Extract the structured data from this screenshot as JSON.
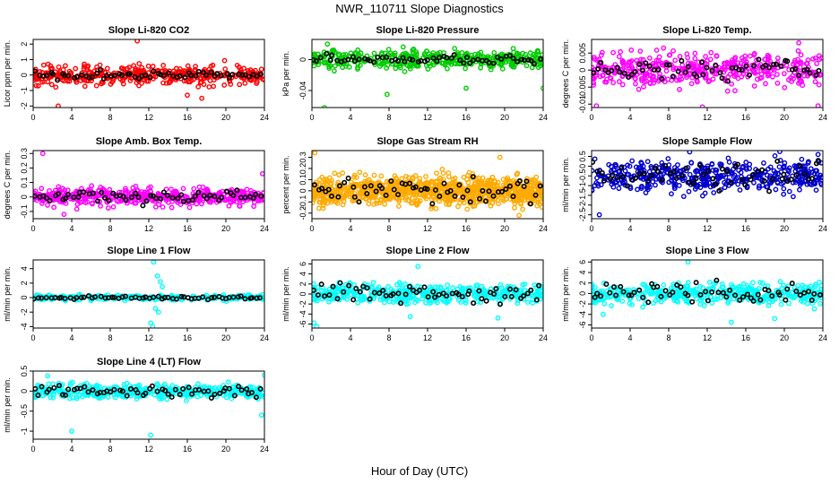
{
  "figure": {
    "title": "NWR_110711  Slope Diagnostics",
    "xlabel": "Hour of Day (UTC)"
  },
  "chart_data": [
    {
      "type": "scatter",
      "title": "Slope Li-820 CO2",
      "ylabel": "Licor ppm per min.",
      "color": "#ff0000",
      "xlim": [
        0,
        24
      ],
      "xticks": [
        0,
        4,
        8,
        12,
        16,
        20,
        24
      ],
      "ylim": [
        -2.1,
        2.3
      ],
      "yticks": [
        -2,
        -1,
        0,
        1,
        2
      ],
      "spread": 0.45,
      "black_spread": 0.2,
      "n_color": 400,
      "n_black": 60,
      "outliers": [
        {
          "x": 10.8,
          "y": 2.2
        },
        {
          "x": 2.6,
          "y": -2.0
        },
        {
          "x": 17.5,
          "y": -1.5
        },
        {
          "x": 16.0,
          "y": -1.3
        }
      ]
    },
    {
      "type": "scatter",
      "title": "Slope Li-820 Pressure",
      "ylabel": "kPa per min.",
      "color": "#00cc00",
      "xlim": [
        0,
        24
      ],
      "xticks": [
        0,
        4,
        8,
        12,
        16,
        20,
        24
      ],
      "ylim": [
        -0.062,
        0.026
      ],
      "yticks": [
        -0.04,
        0.0
      ],
      "spread": 0.008,
      "black_spread": 0.004,
      "n_color": 400,
      "n_black": 60,
      "outliers": [
        {
          "x": 1.3,
          "y": -0.062
        },
        {
          "x": 7.8,
          "y": -0.045
        },
        {
          "x": 16.0,
          "y": -0.037
        },
        {
          "x": 24.0,
          "y": -0.037
        },
        {
          "x": 1.6,
          "y": 0.02
        }
      ]
    },
    {
      "type": "scatter",
      "title": "Slope Li-820 Temp.",
      "ylabel": "degrees C per min.",
      "color": "#ff00ff",
      "xlim": [
        0,
        24
      ],
      "xticks": [
        0,
        4,
        8,
        12,
        16,
        20,
        24
      ],
      "ylim": [
        -0.011,
        0.009
      ],
      "yticks": [
        -0.01,
        -0.005,
        0.0,
        0.005
      ],
      "spread": 0.0035,
      "black_spread": 0.002,
      "n_color": 420,
      "n_black": 60,
      "outliers": [
        {
          "x": 0.5,
          "y": -0.0105
        },
        {
          "x": 11.5,
          "y": -0.0108
        },
        {
          "x": 23.5,
          "y": -0.0105
        },
        {
          "x": 21.5,
          "y": 0.008
        }
      ]
    },
    {
      "type": "scatter",
      "title": "Slope Amb. Box Temp.",
      "ylabel": "degrees C per min.",
      "color": "#ff00ff",
      "xlim": [
        0,
        24
      ],
      "xticks": [
        0,
        4,
        8,
        12,
        16,
        20,
        24
      ],
      "ylim": [
        -0.15,
        0.32
      ],
      "yticks": [
        -0.1,
        0.0,
        0.1,
        0.2,
        0.3
      ],
      "spread": 0.04,
      "black_spread": 0.03,
      "n_color": 500,
      "n_black": 60,
      "outliers": [
        {
          "x": 1.0,
          "y": 0.3
        },
        {
          "x": 3.2,
          "y": -0.12
        },
        {
          "x": 23.8,
          "y": 0.16
        }
      ]
    },
    {
      "type": "scatter",
      "title": "Slope Gas Stream RH",
      "ylabel": "percent per min.",
      "color": "#ffaa00",
      "xlim": [
        0,
        24
      ],
      "xticks": [
        0,
        4,
        8,
        12,
        16,
        20,
        24
      ],
      "ylim": [
        -0.25,
        0.36
      ],
      "yticks": [
        -0.2,
        -0.1,
        0.0,
        0.1,
        0.2,
        0.3
      ],
      "spread": 0.09,
      "black_spread": 0.08,
      "n_color": 900,
      "n_black": 60,
      "outliers": [
        {
          "x": 0.3,
          "y": 0.34
        },
        {
          "x": 19.5,
          "y": 0.3
        },
        {
          "x": 21.5,
          "y": -0.22
        }
      ]
    },
    {
      "type": "scatter",
      "title": "Slope Sample Flow",
      "ylabel": "ml/min per min.",
      "color": "#0000cc",
      "xlim": [
        0,
        24
      ],
      "xticks": [
        0,
        4,
        8,
        12,
        16,
        20,
        24
      ],
      "ylim": [
        -2.7,
        0.8
      ],
      "yticks": [
        -2.5,
        -2.0,
        -1.5,
        -1.0,
        -0.5,
        0.0,
        0.5
      ],
      "spread": 0.6,
      "black_spread": 0.5,
      "n_color": 460,
      "n_black": 60,
      "center": -0.5,
      "outliers": [
        {
          "x": 23.5,
          "y": 0.6
        },
        {
          "x": 0.8,
          "y": -2.5
        }
      ]
    },
    {
      "type": "scatter",
      "title": "Slope Line 1 Flow",
      "ylabel": "ml/min per min.",
      "color": "#00ffff",
      "xlim": [
        0,
        24
      ],
      "xticks": [
        0,
        4,
        8,
        12,
        16,
        20,
        24
      ],
      "ylim": [
        -4.2,
        5.2
      ],
      "yticks": [
        -4,
        -2,
        0,
        2,
        4
      ],
      "spread": 0.25,
      "black_spread": 0.15,
      "n_color": 260,
      "n_black": 60,
      "outliers": [
        {
          "x": 12.5,
          "y": 4.9
        },
        {
          "x": 12.9,
          "y": 3.0
        },
        {
          "x": 12.2,
          "y": -3.5
        },
        {
          "x": 13.0,
          "y": -2.0
        },
        {
          "x": 12.7,
          "y": -1.5
        },
        {
          "x": 13.2,
          "y": 2.2
        },
        {
          "x": 12.4,
          "y": -4.0
        },
        {
          "x": 13.4,
          "y": 1.5
        }
      ]
    },
    {
      "type": "scatter",
      "title": "Slope Line 2 Flow",
      "ylabel": "ml/min per min.",
      "color": "#00ffff",
      "xlim": [
        0,
        24
      ],
      "xticks": [
        0,
        4,
        8,
        12,
        16,
        20,
        24
      ],
      "ylim": [
        -6.8,
        6.8
      ],
      "yticks": [
        -6,
        -4,
        -2,
        0,
        2,
        4,
        6
      ],
      "spread": 1.3,
      "black_spread": 1.2,
      "n_color": 420,
      "n_black": 60,
      "outliers": [
        {
          "x": 0.2,
          "y": -5.8
        },
        {
          "x": 0.5,
          "y": -6.5
        },
        {
          "x": 11.0,
          "y": 5.5
        },
        {
          "x": 19.3,
          "y": -4.8
        },
        {
          "x": 10.2,
          "y": -4.5
        }
      ]
    },
    {
      "type": "scatter",
      "title": "Slope Line 3 Flow",
      "ylabel": "ml/min per min.",
      "color": "#00ffff",
      "xlim": [
        0,
        24
      ],
      "xticks": [
        0,
        4,
        8,
        12,
        16,
        20,
        24
      ],
      "ylim": [
        -6.6,
        6.4
      ],
      "yticks": [
        -6,
        -4,
        -2,
        0,
        2,
        4,
        6
      ],
      "spread": 1.4,
      "black_spread": 1.2,
      "n_color": 420,
      "n_black": 60,
      "outliers": [
        {
          "x": 10.0,
          "y": 6.0
        },
        {
          "x": 19.0,
          "y": -4.8
        },
        {
          "x": 1.2,
          "y": -4.0
        },
        {
          "x": 14.5,
          "y": -5.5
        }
      ]
    },
    {
      "type": "scatter",
      "title": "Slope Line 4 (LT) Flow",
      "ylabel": "ml/min per min.",
      "color": "#00ffff",
      "xlim": [
        0,
        24
      ],
      "xticks": [
        0,
        4,
        8,
        12,
        16,
        20,
        24
      ],
      "ylim": [
        -1.2,
        0.5
      ],
      "yticks": [
        -1.0,
        -0.5,
        0.0,
        0.5
      ],
      "spread": 0.13,
      "black_spread": 0.1,
      "n_color": 420,
      "n_black": 60,
      "outliers": [
        {
          "x": 12.2,
          "y": -1.1
        },
        {
          "x": 4.0,
          "y": -1.0
        },
        {
          "x": 23.7,
          "y": -0.6
        },
        {
          "x": 1.5,
          "y": 0.38
        },
        {
          "x": 24.0,
          "y": 0.4
        }
      ]
    }
  ]
}
